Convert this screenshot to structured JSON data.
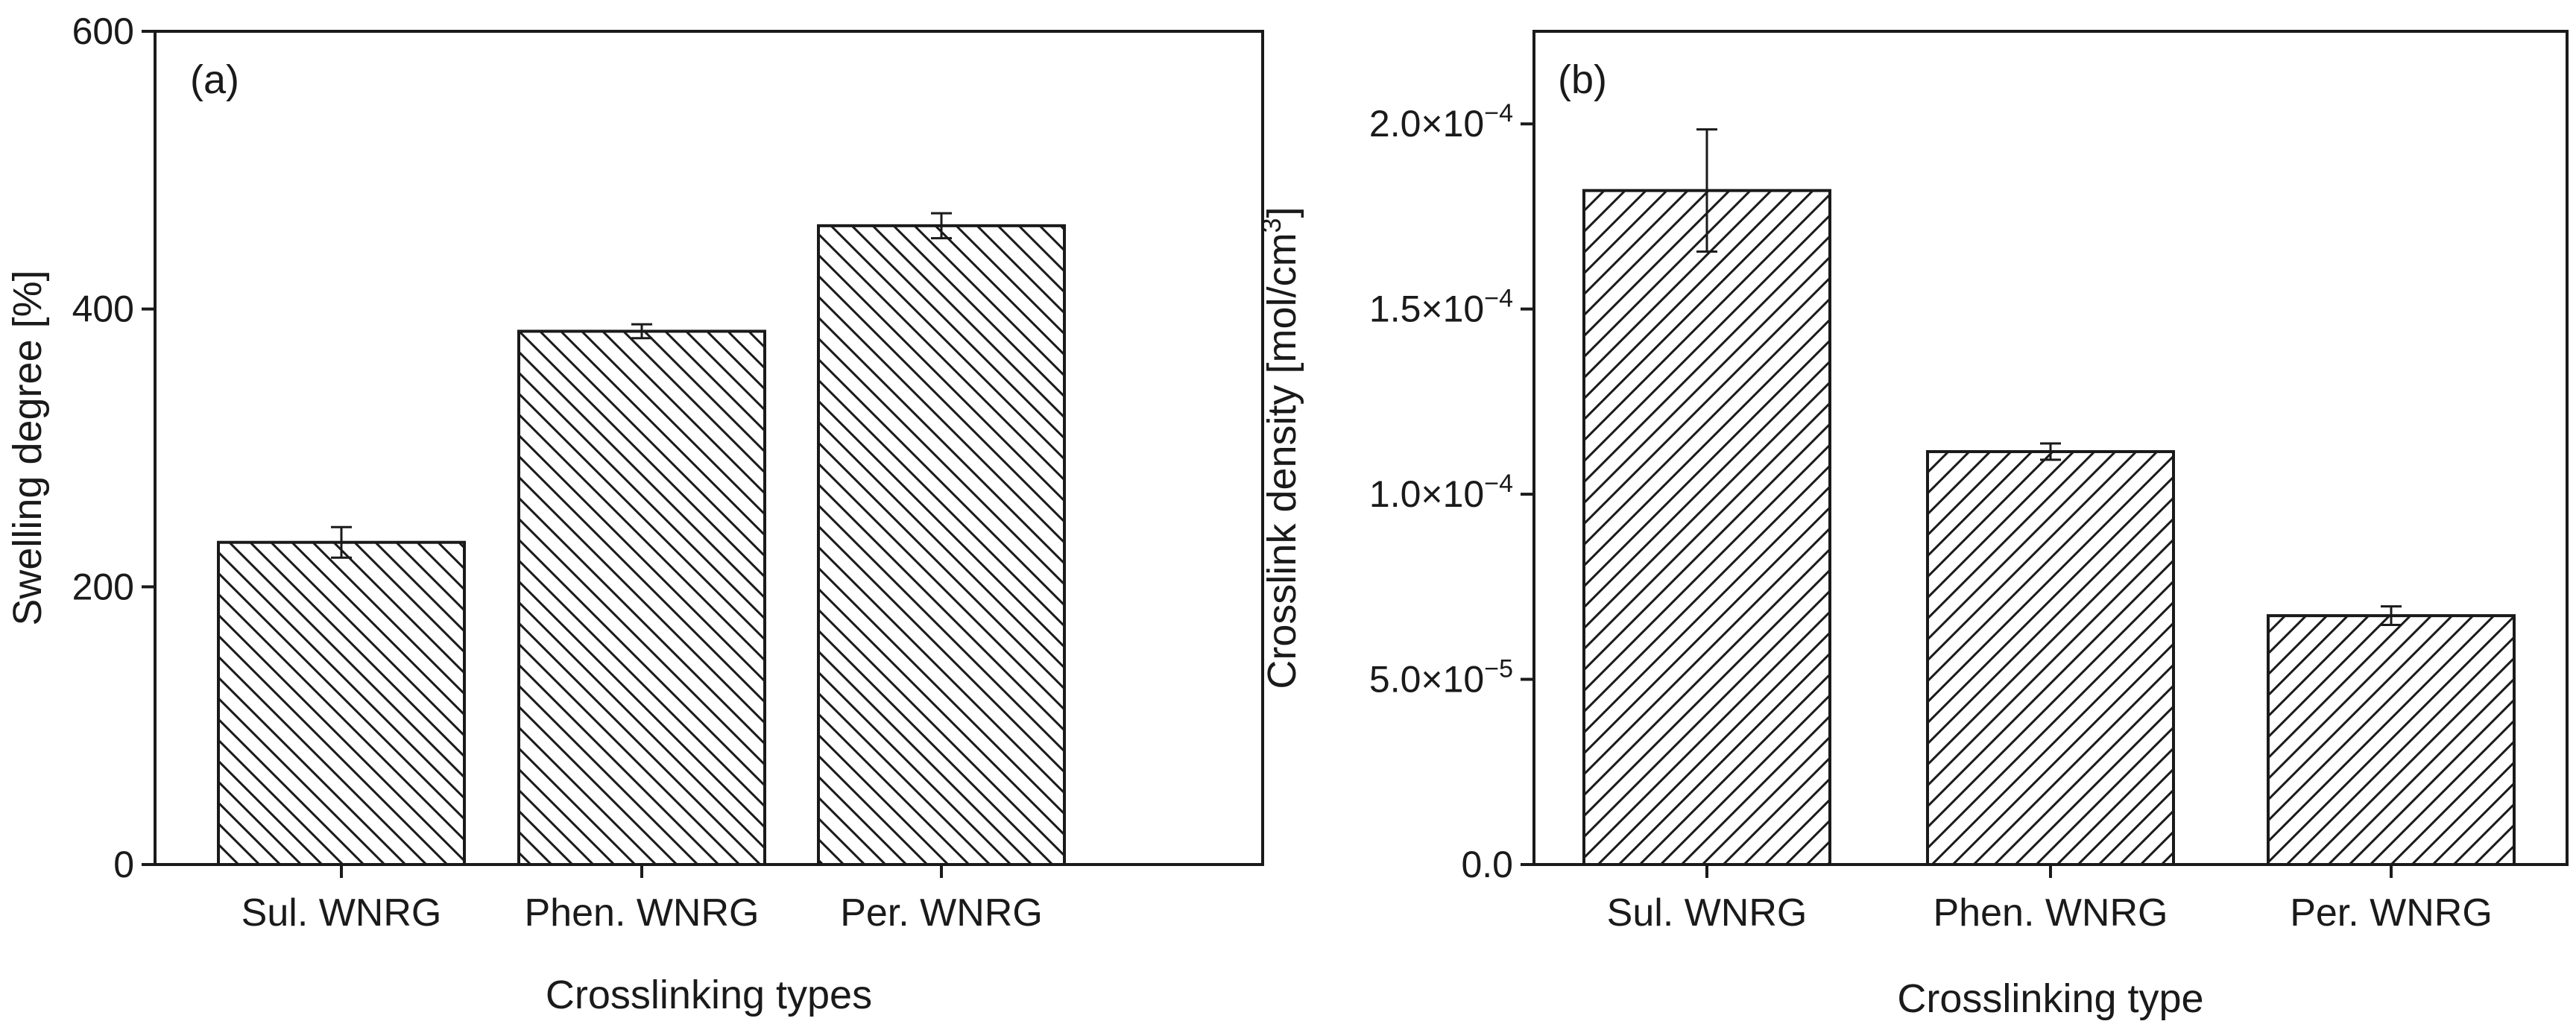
{
  "chart_data": [
    {
      "type": "bar",
      "panel_label": "(a)",
      "categories": [
        "Sul. WNRG",
        "Phen. WNRG",
        "Per. WNRG"
      ],
      "values": [
        232,
        384,
        460
      ],
      "errors": [
        11,
        5,
        9
      ],
      "xlabel": "Crosslinking types",
      "ylabel": "Swelling degree [%]",
      "ylim": [
        0,
        600
      ],
      "yticks": [
        0,
        200,
        400,
        600
      ],
      "ytick_labels": [
        "0",
        "200",
        "400",
        "600"
      ],
      "bar_fill": "hatched (back-diagonal)",
      "bar_color": "#ffffff",
      "edge_color": "#1a1a1a",
      "grid": false,
      "legend": "none"
    },
    {
      "type": "bar",
      "panel_label": "(b)",
      "categories": [
        "Sul. WNRG",
        "Phen. WNRG",
        "Per. WNRG"
      ],
      "values": [
        0.000182,
        0.0001115,
        6.72e-05
      ],
      "errors": [
        1.65e-05,
        2.2e-06,
        2.5e-06
      ],
      "xlabel": "Crosslinking type",
      "ylabel": "Crosslink density [mol/cm",
      "ylabel_sup": "3",
      "ylabel_end": "]",
      "ylim": [
        0,
        0.000225
      ],
      "yticks": [
        0,
        5e-05,
        0.0001,
        0.00015,
        0.0002
      ],
      "ytick_labels": [
        {
          "mant": "0.0",
          "exp": ""
        },
        {
          "mant": "5.0×10",
          "exp": "−5"
        },
        {
          "mant": "1.0×10",
          "exp": "−4"
        },
        {
          "mant": "1.5×10",
          "exp": "−4"
        },
        {
          "mant": "2.0×10",
          "exp": "−4"
        }
      ],
      "bar_fill": "hatched (forward-diagonal)",
      "bar_color": "#ffffff",
      "edge_color": "#1a1a1a",
      "grid": false,
      "legend": "none"
    }
  ]
}
